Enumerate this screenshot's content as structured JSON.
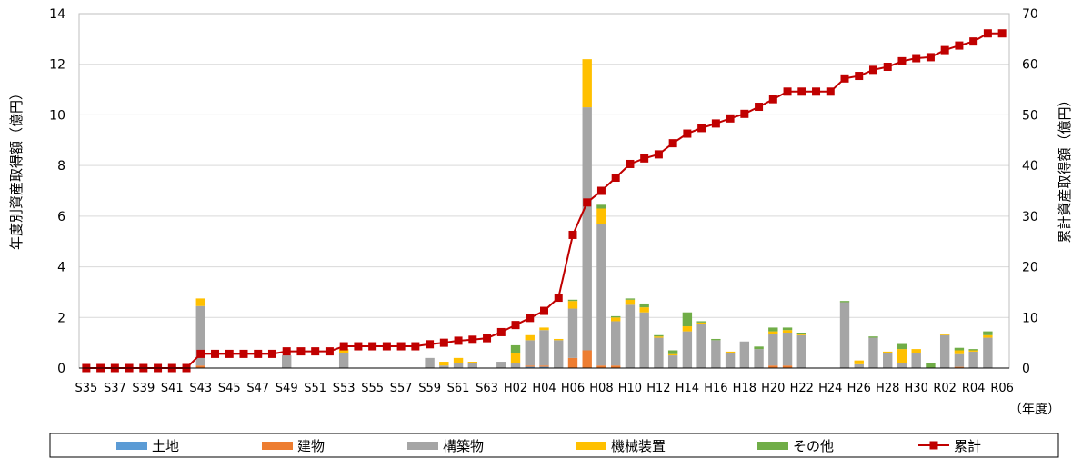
{
  "chart_data": {
    "type": "bar",
    "stacked": true,
    "categories": [
      "S35",
      "S36",
      "S37",
      "S38",
      "S39",
      "S40",
      "S41",
      "S42",
      "S43",
      "S44",
      "S45",
      "S46",
      "S47",
      "S48",
      "S49",
      "S50",
      "S51",
      "S52",
      "S53",
      "S54",
      "S55",
      "S56",
      "S57",
      "S58",
      "S59",
      "S60",
      "S61",
      "S62",
      "S63",
      "H01",
      "H02",
      "H03",
      "H04",
      "H05",
      "H06",
      "H07",
      "H08",
      "H09",
      "H10",
      "H11",
      "H12",
      "H13",
      "H14",
      "H15",
      "H16",
      "H17",
      "H18",
      "H19",
      "H20",
      "H21",
      "H22",
      "H23",
      "H24",
      "H25",
      "H26",
      "H27",
      "H28",
      "H29",
      "H30",
      "R01",
      "R02",
      "R03",
      "R04",
      "R05",
      "R06"
    ],
    "x_tick_labels": [
      "S35",
      "S37",
      "S39",
      "S41",
      "S43",
      "S45",
      "S47",
      "S49",
      "S51",
      "S53",
      "S55",
      "S57",
      "S59",
      "S61",
      "S63",
      "H02",
      "H04",
      "H06",
      "H08",
      "H10",
      "H12",
      "H14",
      "H16",
      "H18",
      "H20",
      "H22",
      "H24",
      "H26",
      "H28",
      "H30",
      "R02",
      "R04",
      "R06"
    ],
    "x_unit_label": "（年度）",
    "ylabel_left": "年度別資産取得額（億円）",
    "ylabel_right": "累計資産取得額（億円）",
    "ylim_left": [
      0,
      14
    ],
    "yticks_left": [
      0,
      2,
      4,
      6,
      8,
      10,
      12,
      14
    ],
    "ylim_right": [
      0,
      70
    ],
    "yticks_right": [
      0,
      10,
      20,
      30,
      40,
      50,
      60,
      70
    ],
    "grid": true,
    "legend_position": "bottom",
    "series": [
      {
        "name": "土地",
        "color": "#5B9BD5",
        "values": [
          0,
          0,
          0,
          0,
          0,
          0,
          0,
          0,
          0,
          0,
          0,
          0,
          0,
          0,
          0,
          0,
          0,
          0,
          0,
          0,
          0,
          0,
          0,
          0,
          0,
          0,
          0,
          0,
          0,
          0,
          0,
          0.05,
          0.05,
          0,
          0,
          0,
          0,
          0,
          0,
          0,
          0,
          0,
          0,
          0,
          0,
          0,
          0,
          0,
          0,
          0,
          0,
          0,
          0,
          0,
          0,
          0,
          0,
          0,
          0,
          0,
          0,
          0,
          0,
          0,
          0
        ]
      },
      {
        "name": "建物",
        "color": "#ED7D31",
        "values": [
          0,
          0,
          0,
          0,
          0,
          0,
          0,
          0,
          0.1,
          0,
          0,
          0,
          0,
          0,
          0,
          0,
          0,
          0,
          0,
          0,
          0,
          0,
          0,
          0,
          0,
          0,
          0,
          0,
          0,
          0,
          0,
          0.05,
          0.05,
          0,
          0.4,
          0.7,
          0.1,
          0.1,
          0,
          0,
          0,
          0,
          0,
          0,
          0,
          0,
          0,
          0,
          0.1,
          0.1,
          0,
          0,
          0,
          0,
          0,
          0,
          0,
          0,
          0,
          0,
          0,
          0.05,
          0,
          0,
          0
        ]
      },
      {
        "name": "構築物",
        "color": "#A5A5A5",
        "values": [
          0,
          0,
          0,
          0,
          0,
          0,
          0,
          0,
          2.35,
          0,
          0,
          0,
          0,
          0,
          0.5,
          0,
          0,
          0,
          0.6,
          0,
          0,
          0,
          0,
          0,
          0.4,
          0.1,
          0.2,
          0.2,
          0,
          0.25,
          0.2,
          1.0,
          1.4,
          1.1,
          1.95,
          9.6,
          5.6,
          1.75,
          2.5,
          2.2,
          1.2,
          0.5,
          1.45,
          1.75,
          1.1,
          0.6,
          1.05,
          0.75,
          1.25,
          1.3,
          1.3,
          0,
          0,
          2.6,
          0.15,
          1.2,
          0.6,
          0.2,
          0.6,
          0,
          1.3,
          0.5,
          0.65,
          1.2,
          0
        ]
      },
      {
        "name": "機械装置",
        "color": "#FFC000",
        "values": [
          0,
          0,
          0,
          0,
          0,
          0,
          0,
          0,
          0.3,
          0,
          0,
          0,
          0,
          0,
          0,
          0,
          0,
          0,
          0.15,
          0,
          0,
          0,
          0,
          0,
          0,
          0.15,
          0.2,
          0.05,
          0,
          0,
          0.4,
          0.2,
          0.1,
          0.05,
          0.3,
          1.9,
          0.6,
          0.15,
          0.2,
          0.2,
          0.05,
          0.05,
          0.2,
          0.05,
          0,
          0.05,
          0,
          0,
          0.1,
          0.1,
          0.05,
          0,
          0,
          0,
          0.15,
          0,
          0.05,
          0.55,
          0.15,
          0,
          0.05,
          0.15,
          0.05,
          0.1,
          0
        ]
      },
      {
        "name": "その他",
        "color": "#70AD47",
        "values": [
          0,
          0,
          0,
          0,
          0,
          0,
          0,
          0,
          0,
          0,
          0,
          0,
          0,
          0,
          0,
          0,
          0,
          0,
          0,
          0,
          0,
          0,
          0,
          0,
          0,
          0,
          0,
          0,
          0,
          0,
          0.3,
          0,
          0,
          0,
          0.05,
          0,
          0.15,
          0.05,
          0.05,
          0.15,
          0.05,
          0.15,
          0.55,
          0.05,
          0.05,
          0,
          0,
          0.1,
          0.15,
          0.1,
          0.05,
          0,
          0,
          0.05,
          0,
          0.05,
          0,
          0.2,
          0,
          0.2,
          0,
          0.1,
          0.05,
          0.15,
          0
        ]
      },
      {
        "name": "累計",
        "type": "line",
        "axis": "right",
        "color": "#C00000",
        "values": [
          0,
          0,
          0,
          0,
          0,
          0,
          0,
          0,
          2.8,
          2.8,
          2.8,
          2.8,
          2.8,
          2.8,
          3.3,
          3.3,
          3.3,
          3.3,
          4.3,
          4.3,
          4.3,
          4.3,
          4.3,
          4.3,
          4.7,
          5.0,
          5.4,
          5.6,
          5.9,
          7.1,
          8.5,
          9.9,
          11.3,
          13.9,
          26.3,
          32.7,
          35.0,
          37.6,
          40.3,
          41.4,
          42.2,
          44.4,
          46.3,
          47.4,
          48.3,
          49.3,
          50.2,
          51.6,
          53.1,
          54.6,
          54.6,
          54.6,
          54.6,
          57.2,
          57.7,
          58.9,
          59.5,
          60.6,
          61.2,
          61.4,
          62.8,
          63.7,
          64.5,
          66.1,
          66.1
        ]
      }
    ]
  }
}
